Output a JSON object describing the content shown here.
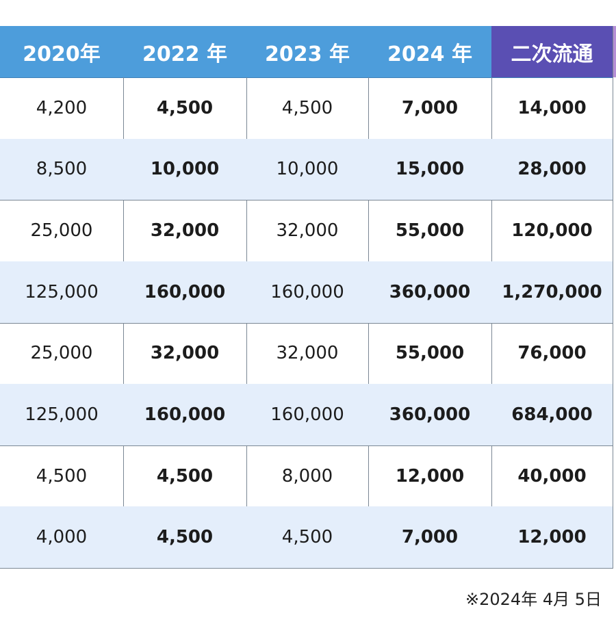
{
  "table": {
    "header": [
      "2020年",
      "2022 年",
      "2023 年",
      "2024 年",
      "二次流通"
    ],
    "rows": [
      [
        "4,200",
        "4,500",
        "4,500",
        "7,000",
        "14,000"
      ],
      [
        "8,500",
        "10,000",
        "10,000",
        "15,000",
        "28,000"
      ],
      [
        "25,000",
        "32,000",
        "32,000",
        "55,000",
        "120,000"
      ],
      [
        "125,000",
        "160,000",
        "160,000",
        "360,000",
        "1,270,000"
      ],
      [
        "25,000",
        "32,000",
        "32,000",
        "55,000",
        "76,000"
      ],
      [
        "125,000",
        "160,000",
        "160,000",
        "360,000",
        "684,000"
      ],
      [
        "4,500",
        "4,500",
        "8,000",
        "12,000",
        "40,000"
      ],
      [
        "4,000",
        "4,500",
        "4,500",
        "7,000",
        "12,000"
      ]
    ]
  },
  "footnote": "※2024年 4月 5日"
}
